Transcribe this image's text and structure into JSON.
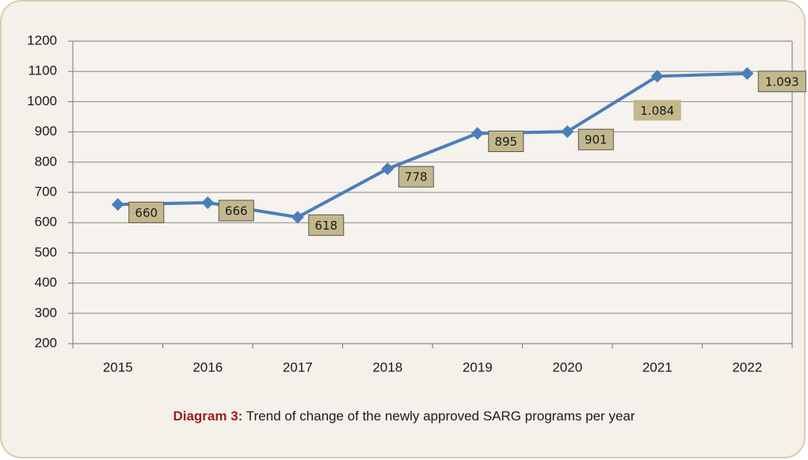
{
  "chart_data": {
    "type": "line",
    "caption_label": "Diagram 3:",
    "caption_text": "Trend of change of the newly approved SARG programs per year",
    "categories": [
      "2015",
      "2016",
      "2017",
      "2018",
      "2019",
      "2020",
      "2021",
      "2022"
    ],
    "values": [
      660,
      666,
      618,
      778,
      895,
      901,
      1084,
      1093
    ],
    "value_labels": [
      "660",
      "666",
      "618",
      "778",
      "895",
      "901",
      "1.084",
      "1.093"
    ],
    "color": "#4a7ebb",
    "label_color": "#c3b88c",
    "ylim": [
      200,
      1200
    ],
    "yticks": [
      200,
      300,
      400,
      500,
      600,
      700,
      800,
      900,
      1000,
      1100,
      1200
    ],
    "grid": true
  }
}
